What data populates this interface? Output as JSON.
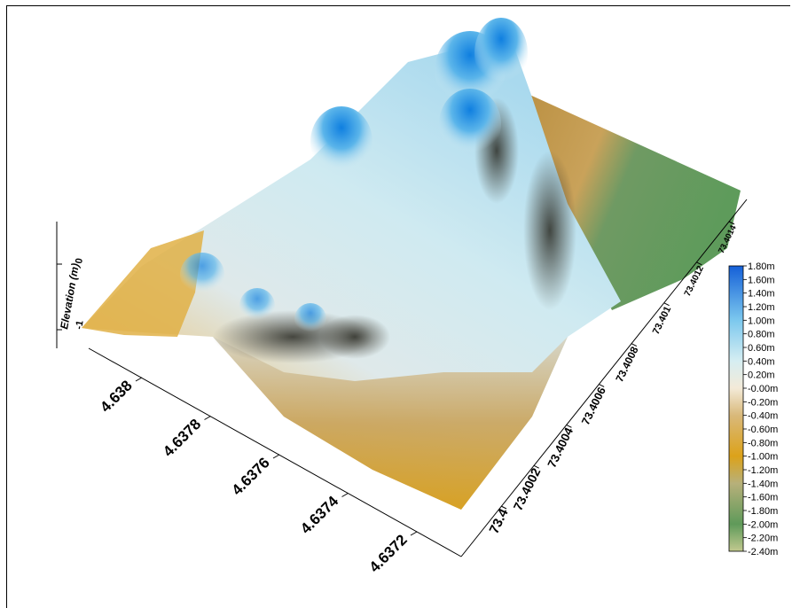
{
  "chart_data": {
    "type": "surface-3d",
    "title": "",
    "zlabel": "Elevation (m)",
    "z_ticks": [
      "0",
      "-1"
    ],
    "x_axis": {
      "ticks": [
        4.638,
        4.6378,
        4.6376,
        4.6374,
        4.6372
      ],
      "tick_labels": [
        "4.638",
        "4.6378",
        "4.6376",
        "4.6374",
        "4.6372"
      ]
    },
    "y_axis": {
      "ticks": [
        73.4,
        73.4002,
        73.4004,
        73.4006,
        73.4008,
        73.401,
        73.4012,
        73.4014
      ],
      "tick_labels": [
        "73.4",
        "73.4002",
        "73.4004",
        "73.4006",
        "73.4008",
        "73.401",
        "73.4012",
        "73.4014"
      ]
    },
    "z_range": [
      -2.4,
      1.8
    ],
    "colorbar": {
      "labels": [
        "1.80m",
        "1.60m",
        "1.40m",
        "1.20m",
        "1.00m",
        "0.80m",
        "0.60m",
        "0.40m",
        "0.20m",
        "-0.00m",
        "-0.20m",
        "-0.40m",
        "-0.60m",
        "-0.80m",
        "-1.00m",
        "-1.20m",
        "-1.40m",
        "-1.60m",
        "-1.80m",
        "-2.00m",
        "-2.20m",
        "-2.40m"
      ],
      "stops": [
        {
          "value": 1.8,
          "color": "#1560d8"
        },
        {
          "value": 1.0,
          "color": "#7cc8ee"
        },
        {
          "value": 0.4,
          "color": "#d6eef2"
        },
        {
          "value": 0.0,
          "color": "#f3ead8"
        },
        {
          "value": -0.4,
          "color": "#d9b97a"
        },
        {
          "value": -1.0,
          "color": "#dca21a"
        },
        {
          "value": -1.4,
          "color": "#b7b07a"
        },
        {
          "value": -2.0,
          "color": "#5f9a5a"
        },
        {
          "value": -2.4,
          "color": "#c2c98f"
        }
      ]
    }
  }
}
